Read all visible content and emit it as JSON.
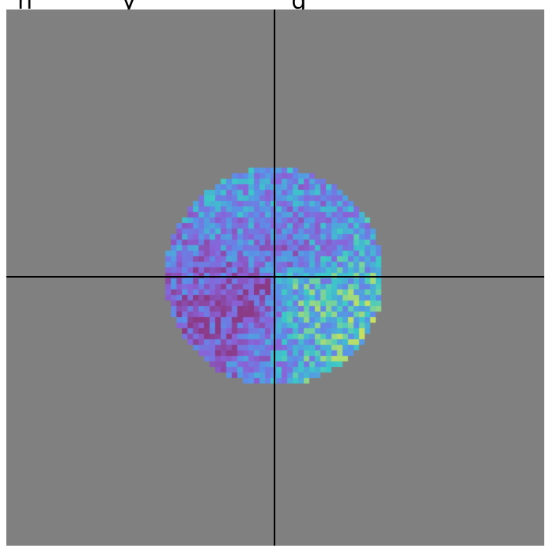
{
  "header": {
    "title": "n_ _ _ _ _y _ _ _ _ _ _ _ _g _ _ _"
  },
  "colormap": {
    "low": "#8b3a85",
    "mid_low": "#8a62d8",
    "mid": "#5b8fe8",
    "mid_high": "#3cc8c8",
    "high": "#c8e060"
  },
  "background_color": "#808080",
  "crosshair_color": "#000000"
}
